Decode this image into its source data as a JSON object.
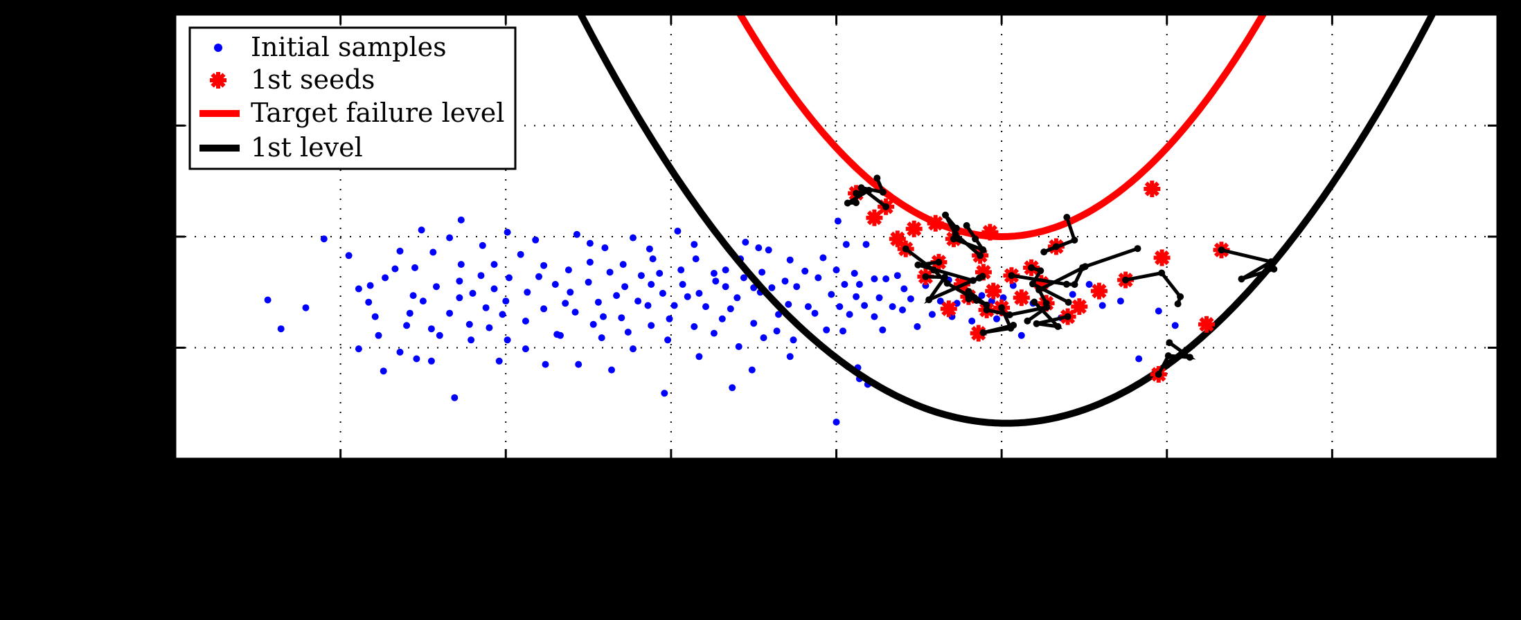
{
  "chart_data": {
    "type": "scatter",
    "title": "",
    "xlabel": "",
    "ylabel": "",
    "xlim": [
      -5,
      3
    ],
    "ylim": [
      -4,
      0
    ],
    "grid": true,
    "legend_placement": "top-left",
    "colors": {
      "initial": "#0000ff",
      "seeds": "#ff0000",
      "target": "#ff0000",
      "level1": "#000000",
      "chains": "#000000",
      "background": "#ffffff",
      "frame": "#000000"
    },
    "legend": {
      "initial": "Initial samples",
      "seeds": "1st seeds",
      "target": "Target failure level",
      "level1": "1st level"
    },
    "curves": {
      "target": {
        "name": "Target failure level",
        "vertex_x": 0.0,
        "vertex_y": -2.0,
        "a": 0.8
      },
      "level1": {
        "name": "1st level",
        "vertex_x": 0.03,
        "vertex_y": -3.68,
        "a": 0.555
      }
    },
    "series": [
      {
        "name": "Initial samples",
        "points": [
          [
            -4.44,
            -2.57
          ],
          [
            -4.36,
            -2.83
          ],
          [
            -4.21,
            -2.64
          ],
          [
            -4.1,
            -2.02
          ],
          [
            -3.95,
            -2.17
          ],
          [
            -3.89,
            -2.47
          ],
          [
            -3.89,
            -3.01
          ],
          [
            -3.82,
            -2.44
          ],
          [
            -3.83,
            -2.59
          ],
          [
            -3.77,
            -2.89
          ],
          [
            -3.79,
            -2.72
          ],
          [
            -3.73,
            -2.37
          ],
          [
            -3.64,
            -3.04
          ],
          [
            -3.74,
            -3.21
          ],
          [
            -3.64,
            -2.13
          ],
          [
            -3.67,
            -2.29
          ],
          [
            -3.51,
            -1.94
          ],
          [
            -3.6,
            -2.8
          ],
          [
            -3.58,
            -2.69
          ],
          [
            -3.56,
            -2.53
          ],
          [
            -3.54,
            -3.1
          ],
          [
            -3.55,
            -2.28
          ],
          [
            -3.45,
            -3.12
          ],
          [
            -3.5,
            -2.58
          ],
          [
            -3.44,
            -2.14
          ],
          [
            -3.45,
            -2.83
          ],
          [
            -3.42,
            -2.45
          ],
          [
            -3.34,
            -2.01
          ],
          [
            -3.4,
            -2.89
          ],
          [
            -3.34,
            -2.69
          ],
          [
            -3.31,
            -3.45
          ],
          [
            -3.28,
            -2.4
          ],
          [
            -3.27,
            -2.25
          ],
          [
            -3.27,
            -1.85
          ],
          [
            -3.28,
            -2.55
          ],
          [
            -3.21,
            -2.93
          ],
          [
            -3.2,
            -2.51
          ],
          [
            -3.22,
            -2.79
          ],
          [
            -3.15,
            -2.35
          ],
          [
            -3.14,
            -2.08
          ],
          [
            -3.12,
            -2.64
          ],
          [
            -3.04,
            -3.12
          ],
          [
            -3.1,
            -2.82
          ],
          [
            -3.07,
            -2.25
          ],
          [
            -3.07,
            -2.47
          ],
          [
            -3.02,
            -2.7
          ],
          [
            -2.99,
            -1.96
          ],
          [
            -2.99,
            -2.93
          ],
          [
            -2.98,
            -2.37
          ],
          [
            -3.0,
            -2.58
          ],
          [
            -2.88,
            -3.01
          ],
          [
            -2.91,
            -2.16
          ],
          [
            -2.87,
            -2.5
          ],
          [
            -2.88,
            -2.76
          ],
          [
            -2.82,
            -2.03
          ],
          [
            -2.8,
            -2.36
          ],
          [
            -2.76,
            -3.15
          ],
          [
            -2.77,
            -2.26
          ],
          [
            -2.77,
            -2.65
          ],
          [
            -2.7,
            -2.43
          ],
          [
            -2.67,
            -2.89
          ],
          [
            -2.69,
            -2.88
          ],
          [
            -2.64,
            -2.6
          ],
          [
            -2.62,
            -2.3
          ],
          [
            -2.61,
            -2.5
          ],
          [
            -2.56,
            -3.15
          ],
          [
            -2.58,
            -2.68
          ],
          [
            -2.57,
            -1.98
          ],
          [
            -2.49,
            -2.23
          ],
          [
            -2.49,
            -2.06
          ],
          [
            -2.5,
            -2.41
          ],
          [
            -2.47,
            -2.79
          ],
          [
            -2.44,
            -2.59
          ],
          [
            -2.41,
            -2.72
          ],
          [
            -2.42,
            -2.91
          ],
          [
            -2.37,
            -2.32
          ],
          [
            -2.4,
            -2.1
          ],
          [
            -2.36,
            -3.2
          ],
          [
            -2.33,
            -2.53
          ],
          [
            -2.3,
            -2.73
          ],
          [
            -2.29,
            -2.25
          ],
          [
            -2.28,
            -2.45
          ],
          [
            -2.23,
            -2.01
          ],
          [
            -2.26,
            -2.86
          ],
          [
            -2.23,
            -3.01
          ],
          [
            -2.2,
            -2.58
          ],
          [
            -2.18,
            -2.35
          ],
          [
            -2.13,
            -2.11
          ],
          [
            -2.14,
            -2.62
          ],
          [
            -2.12,
            -2.43
          ],
          [
            -2.12,
            -2.8
          ],
          [
            -2.11,
            -2.2
          ],
          [
            -2.04,
            -3.41
          ],
          [
            -2.05,
            -2.51
          ],
          [
            -2.07,
            -2.33
          ],
          [
            -2.01,
            -2.74
          ],
          [
            -2.02,
            -2.93
          ],
          [
            -1.98,
            -2.62
          ],
          [
            -1.96,
            -1.95
          ],
          [
            -1.94,
            -2.3
          ],
          [
            -1.93,
            -2.43
          ],
          [
            -1.9,
            -2.54
          ],
          [
            -1.86,
            -2.07
          ],
          [
            -1.86,
            -2.81
          ],
          [
            -1.85,
            -2.2
          ],
          [
            -1.83,
            -3.08
          ],
          [
            -1.83,
            -2.51
          ],
          [
            -1.79,
            -2.63
          ],
          [
            -1.74,
            -2.87
          ],
          [
            -1.74,
            -2.33
          ],
          [
            -1.73,
            -2.4
          ],
          [
            -1.69,
            -2.74
          ],
          [
            -1.67,
            -2.45
          ],
          [
            -1.67,
            -2.3
          ],
          [
            -1.63,
            -3.36
          ],
          [
            -1.64,
            -2.65
          ],
          [
            -1.6,
            -2.55
          ],
          [
            -1.59,
            -2.99
          ],
          [
            -1.58,
            -2.2
          ],
          [
            -1.55,
            -2.05
          ],
          [
            -1.56,
            -2.37
          ],
          [
            -1.51,
            -3.2
          ],
          [
            -1.5,
            -2.78
          ],
          [
            -1.5,
            -2.46
          ],
          [
            -1.47,
            -2.1
          ],
          [
            -1.46,
            -2.5
          ],
          [
            -1.45,
            -2.32
          ],
          [
            -1.44,
            -2.91
          ],
          [
            -1.41,
            -2.12
          ],
          [
            -1.39,
            -2.46
          ],
          [
            -1.36,
            -2.85
          ],
          [
            -1.35,
            -2.7
          ],
          [
            -1.31,
            -2.4
          ],
          [
            -1.29,
            -2.61
          ],
          [
            -1.28,
            -3.08
          ],
          [
            -1.28,
            -2.21
          ],
          [
            -1.26,
            -2.93
          ],
          [
            -1.24,
            -2.45
          ],
          [
            -1.19,
            -2.31
          ],
          [
            -1.17,
            -2.63
          ],
          [
            -1.13,
            -2.69
          ],
          [
            -1.11,
            -2.37
          ],
          [
            -1.08,
            -2.19
          ],
          [
            -1.06,
            -2.84
          ],
          [
            -1.0,
            -3.67
          ],
          [
            -1.03,
            -2.52
          ],
          [
            -0.99,
            -1.86
          ],
          [
            -1.0,
            -2.3
          ],
          [
            -0.98,
            -2.63
          ],
          [
            -0.96,
            -2.85
          ],
          [
            -0.94,
            -2.07
          ],
          [
            -0.95,
            -2.43
          ],
          [
            -0.93,
            -3.17
          ],
          [
            -0.92,
            -2.7
          ],
          [
            -0.89,
            -2.33
          ],
          [
            -0.87,
            -3.18
          ],
          [
            -0.88,
            -2.54
          ],
          [
            -0.86,
            -2.43
          ],
          [
            -0.86,
            -3.28
          ],
          [
            -0.83,
            -2.62
          ],
          [
            -0.82,
            -2.07
          ],
          [
            -0.81,
            -3.33
          ],
          [
            -0.77,
            -2.38
          ],
          [
            -0.77,
            -2.72
          ],
          [
            -0.74,
            -2.55
          ],
          [
            -0.72,
            -2.84
          ],
          [
            -0.7,
            -2.38
          ],
          [
            -0.66,
            -2.63
          ],
          [
            -0.63,
            -2.35
          ],
          [
            -0.6,
            -2.66
          ],
          [
            -0.59,
            -2.47
          ],
          [
            -0.55,
            -2.56
          ],
          [
            -0.51,
            -2.81
          ],
          [
            -0.46,
            -2.44
          ],
          [
            -0.42,
            -2.7
          ],
          [
            -0.37,
            -2.58
          ],
          [
            -0.32,
            -2.39
          ],
          [
            -0.3,
            -2.72
          ],
          [
            -0.27,
            -2.6
          ],
          [
            -0.22,
            -2.42
          ],
          [
            -0.18,
            -2.76
          ],
          [
            -0.12,
            -2.53
          ],
          [
            -0.06,
            -2.58
          ],
          [
            -0.03,
            -2.74
          ],
          [
            0.01,
            -2.55
          ],
          [
            0.07,
            -2.44
          ],
          [
            0.12,
            -2.89
          ],
          [
            0.19,
            -2.6
          ],
          [
            0.25,
            -2.4
          ],
          [
            0.36,
            -2.73
          ],
          [
            0.43,
            -2.52
          ],
          [
            0.53,
            -2.43
          ],
          [
            0.61,
            -2.62
          ],
          [
            0.72,
            -2.58
          ],
          [
            0.83,
            -3.1
          ],
          [
            0.95,
            -2.67
          ],
          [
            1.05,
            -2.8
          ]
        ]
      },
      {
        "name": "1st seeds",
        "points": [
          [
            -0.88,
            -1.61
          ],
          [
            -0.77,
            -1.83
          ],
          [
            -0.7,
            -1.73
          ],
          [
            -0.63,
            -2.02
          ],
          [
            -0.58,
            -2.11
          ],
          [
            -0.53,
            -1.93
          ],
          [
            -0.46,
            -2.36
          ],
          [
            -0.4,
            -1.88
          ],
          [
            -0.38,
            -2.23
          ],
          [
            -0.32,
            -2.65
          ],
          [
            -0.29,
            -2.02
          ],
          [
            -0.24,
            -2.43
          ],
          [
            -0.2,
            -2.54
          ],
          [
            -0.14,
            -2.87
          ],
          [
            -0.13,
            -2.17
          ],
          [
            -0.11,
            -2.32
          ],
          [
            -0.09,
            -2.66
          ],
          [
            -0.05,
            -2.49
          ],
          [
            0.0,
            -2.64
          ],
          [
            -0.07,
            -1.96
          ],
          [
            0.06,
            -2.35
          ],
          [
            0.12,
            -2.55
          ],
          [
            0.18,
            -2.28
          ],
          [
            0.24,
            -2.42
          ],
          [
            0.27,
            -2.6
          ],
          [
            0.47,
            -2.63
          ],
          [
            0.75,
            -2.39
          ],
          [
            0.97,
            -2.19
          ],
          [
            0.33,
            -2.09
          ],
          [
            0.59,
            -2.49
          ],
          [
            0.4,
            -2.72
          ],
          [
            0.91,
            -1.57
          ],
          [
            0.95,
            -3.24
          ],
          [
            1.24,
            -2.79
          ],
          [
            1.33,
            -2.12
          ]
        ]
      }
    ]
  }
}
